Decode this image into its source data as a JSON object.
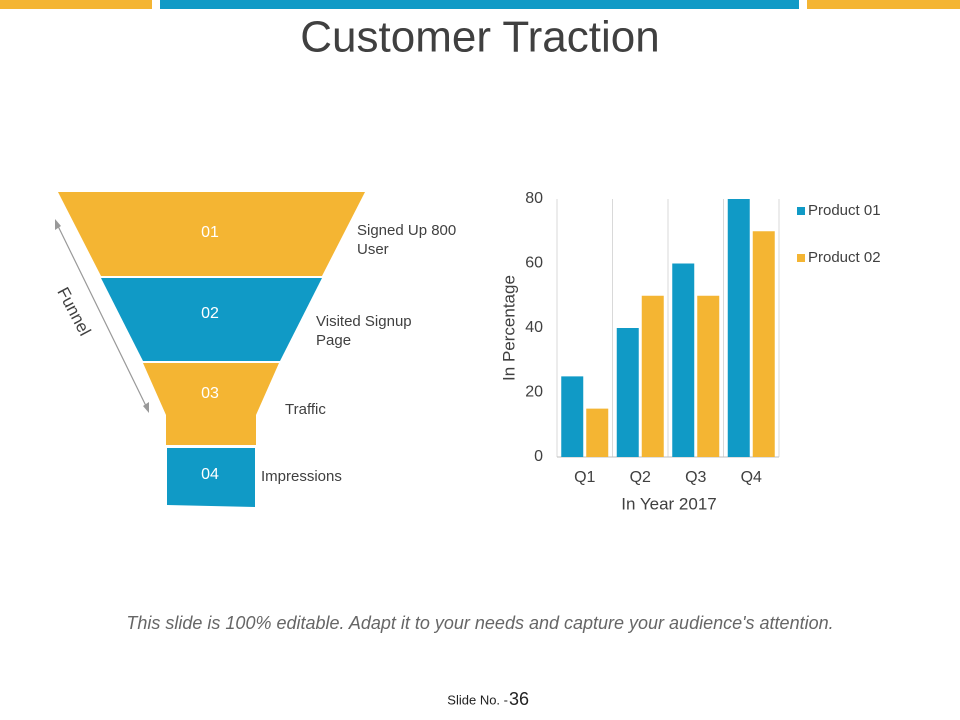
{
  "title": "Customer Traction",
  "funnel": {
    "label": "Funnel",
    "stages": [
      {
        "number": "01",
        "text": [
          "Signed  Up 800",
          "User"
        ]
      },
      {
        "number": "02",
        "text": [
          "Visited Signup",
          "Page"
        ]
      },
      {
        "number": "03",
        "text": [
          "Traffic"
        ]
      },
      {
        "number": "04",
        "text": [
          "Impressions"
        ]
      }
    ]
  },
  "chart_data": {
    "type": "bar",
    "x_label": "In Year 2017",
    "y_label": "In Percentage",
    "categories": [
      "Q1",
      "Q2",
      "Q3",
      "Q4"
    ],
    "series": [
      {
        "name": "Product 01",
        "color": "#109ac6",
        "values": [
          25,
          40,
          60,
          80
        ]
      },
      {
        "name": "Product 02",
        "color": "#f4b533",
        "values": [
          15,
          50,
          50,
          70
        ]
      }
    ],
    "ylim": [
      0,
      80
    ],
    "yticks": [
      0,
      20,
      40,
      60,
      80
    ],
    "grid": true,
    "legend": "right"
  },
  "footer": {
    "note": "This slide is 100% editable. Adapt it to your needs and capture your audience's attention.",
    "slide_label": "Slide No. -",
    "slide_number": "36"
  }
}
